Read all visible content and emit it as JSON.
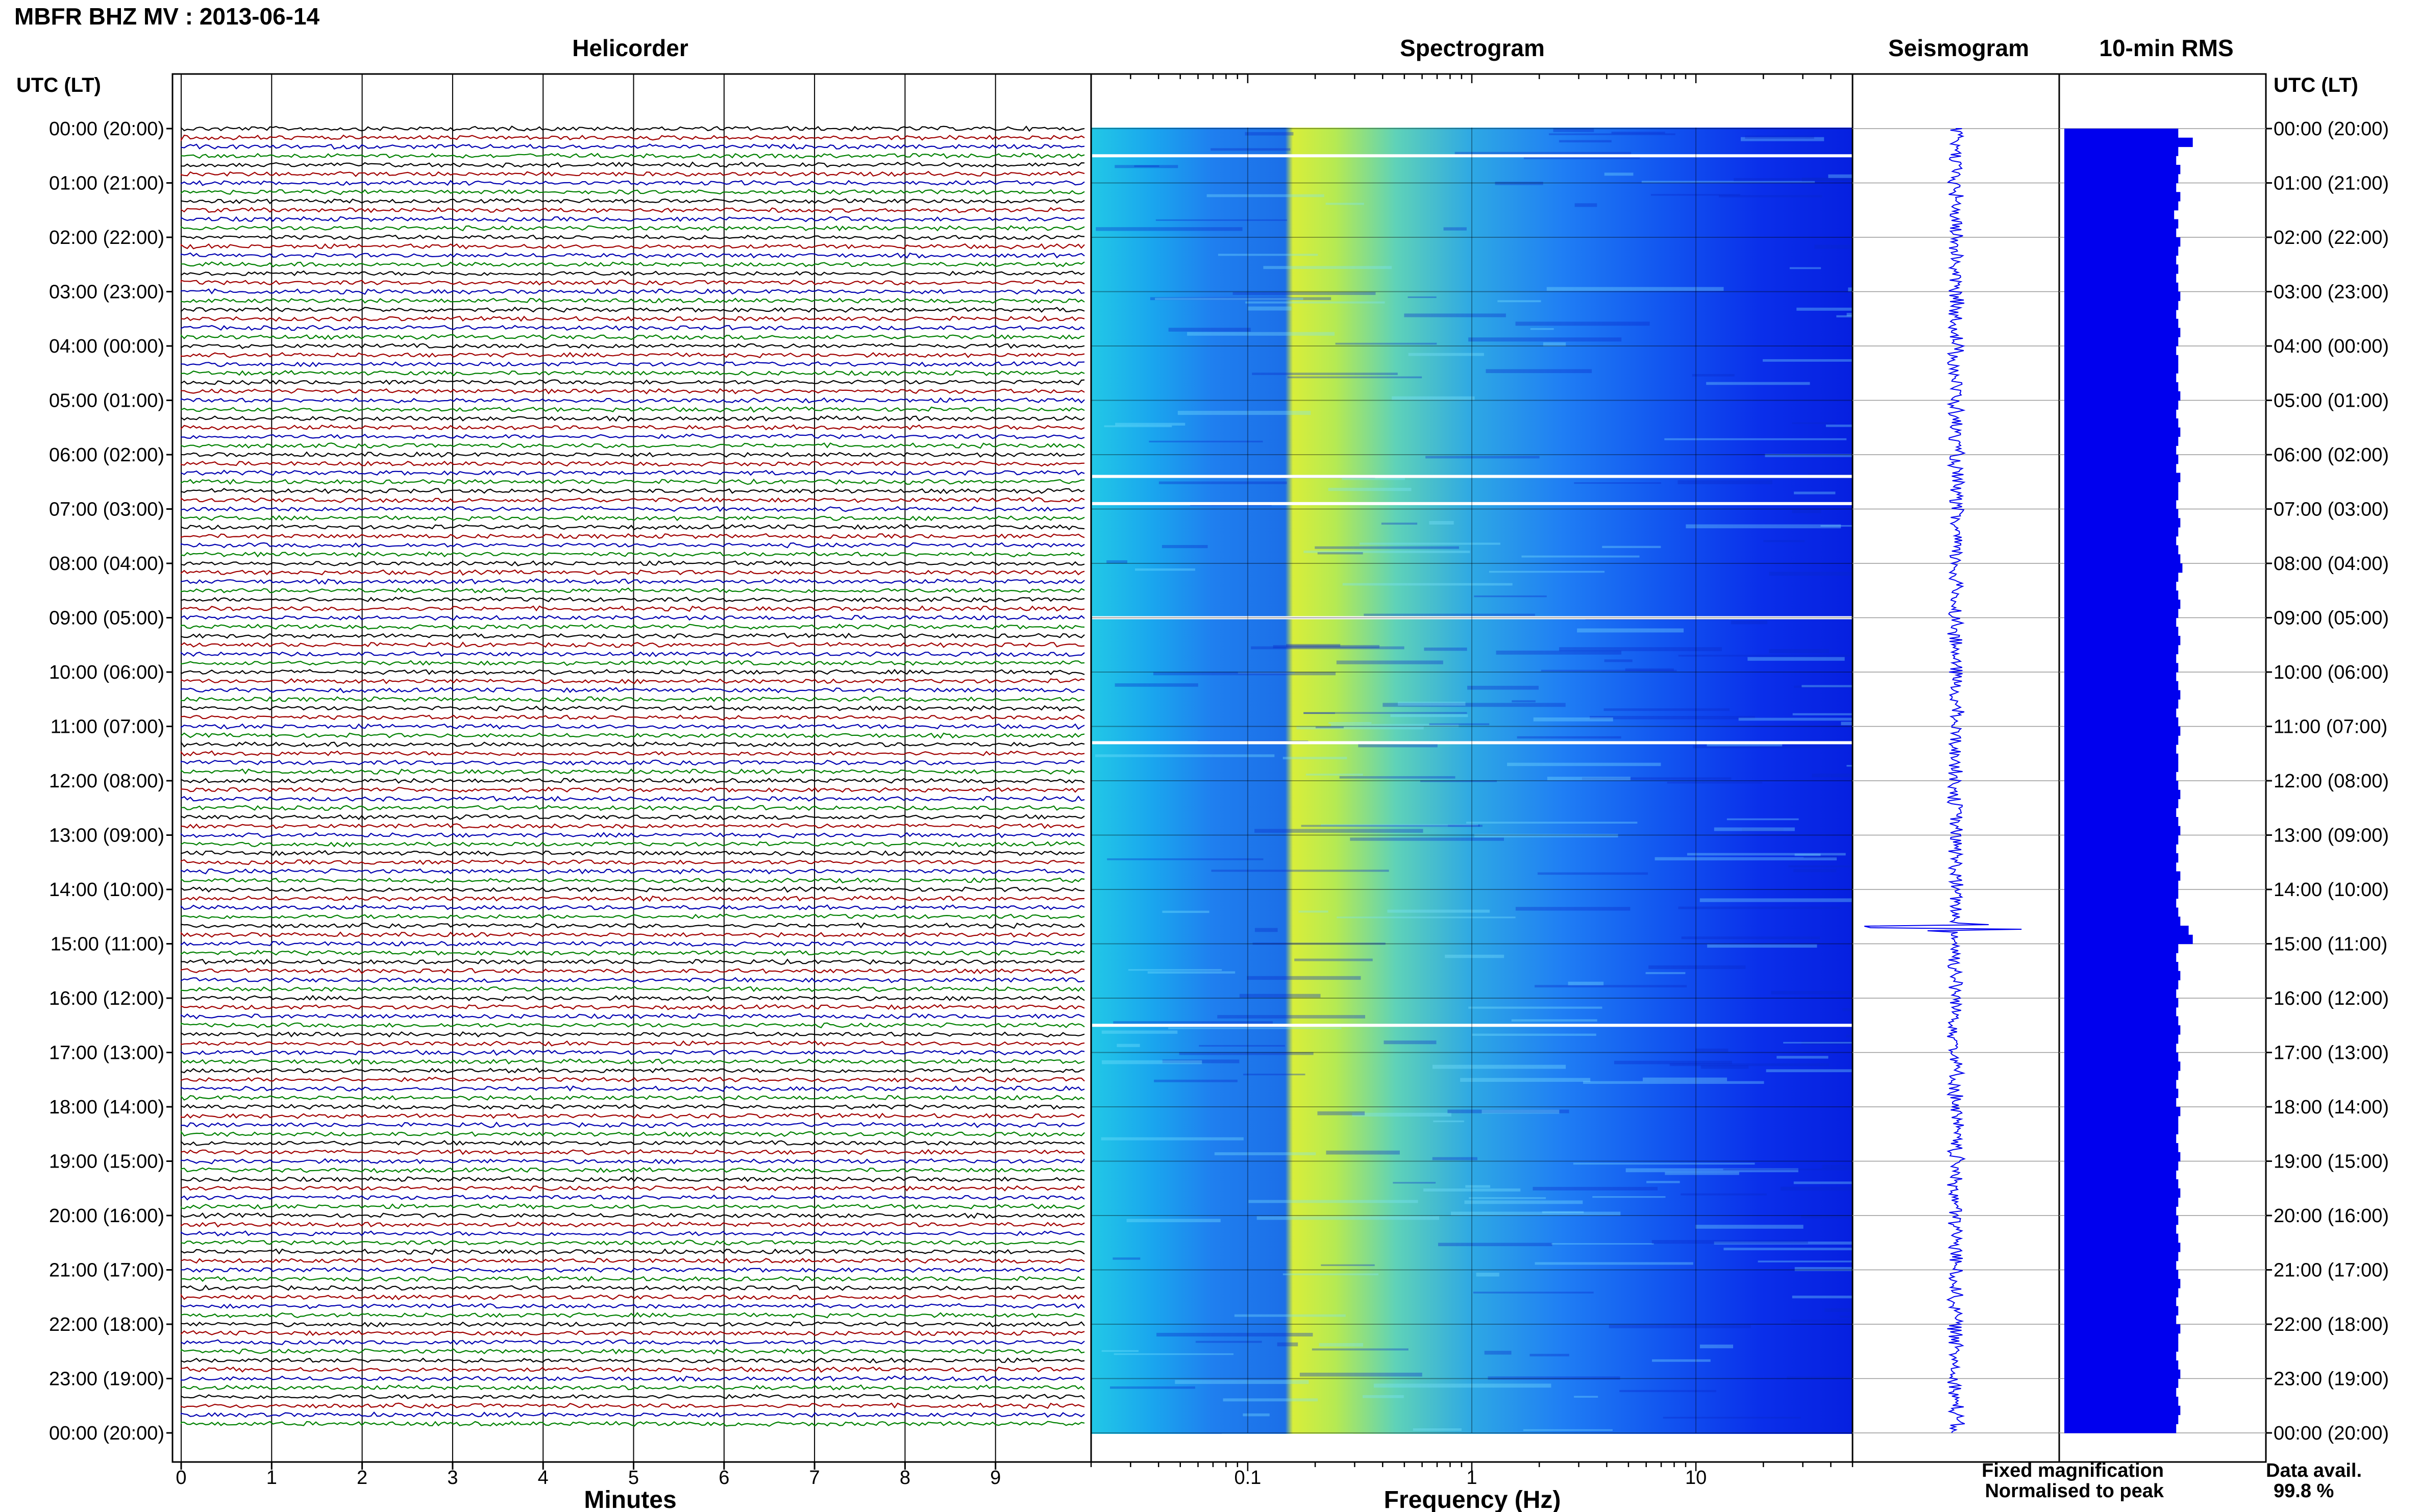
{
  "header": {
    "station_title": "MBFR BHZ MV : 2013-06-14"
  },
  "panels": {
    "helicorder": "Helicorder",
    "spectrogram": "Spectrogram",
    "seismogram": "Seismogram",
    "rms": "10-min RMS"
  },
  "axis_labels": {
    "utc_left": "UTC (LT)",
    "utc_right": "UTC (LT)",
    "minutes": "Minutes",
    "frequency": "Frequency (Hz)"
  },
  "legend": {
    "fixed": "Fixed magnification",
    "normalised": "Normalised to peak",
    "fixed_color": "#0000ee",
    "normalised_color": "#ee0000"
  },
  "availability": {
    "label": "Data avail.",
    "value": "99.8 %"
  },
  "colors": {
    "trace_cycle": [
      "#000000",
      "#a00000",
      "#0000b0",
      "#008000"
    ],
    "rms_bar": "#0000ee",
    "seismogram": "#0000ee"
  },
  "chart_data": {
    "type": "heatmap",
    "title": "MBFR BHZ MV : 2013-06-14",
    "time_labels": [
      "00:00 (20:00)",
      "01:00 (21:00)",
      "02:00 (22:00)",
      "03:00 (23:00)",
      "04:00 (00:00)",
      "05:00 (01:00)",
      "06:00 (02:00)",
      "07:00 (03:00)",
      "08:00 (04:00)",
      "09:00 (05:00)",
      "10:00 (06:00)",
      "11:00 (07:00)",
      "12:00 (08:00)",
      "13:00 (09:00)",
      "14:00 (10:00)",
      "15:00 (11:00)",
      "16:00 (12:00)",
      "17:00 (13:00)",
      "18:00 (14:00)",
      "19:00 (15:00)",
      "20:00 (16:00)",
      "21:00 (17:00)",
      "22:00 (18:00)",
      "23:00 (19:00)",
      "00:00 (20:00)"
    ],
    "minutes_ticks": [
      "0",
      "1",
      "2",
      "3",
      "4",
      "5",
      "6",
      "7",
      "8",
      "9"
    ],
    "minutes_range": [
      0,
      10
    ],
    "frequency_ticks": [
      "0.1",
      "1",
      "10"
    ],
    "frequency_range": [
      0.02,
      50
    ],
    "frequency_scale": "log",
    "traces_per_hour": 6,
    "rms_values": [
      0.55,
      0.62,
      0.55,
      0.54,
      0.56,
      0.55,
      0.54,
      0.56,
      0.55,
      0.53,
      0.55,
      0.54,
      0.56,
      0.55,
      0.54,
      0.55,
      0.54,
      0.55,
      0.56,
      0.55,
      0.54,
      0.55,
      0.56,
      0.55,
      0.54,
      0.55,
      0.55,
      0.54,
      0.55,
      0.56,
      0.55,
      0.54,
      0.55,
      0.56,
      0.55,
      0.54,
      0.55,
      0.54,
      0.56,
      0.55,
      0.55,
      0.54,
      0.55,
      0.56,
      0.55,
      0.54,
      0.55,
      0.56,
      0.57,
      0.55,
      0.54,
      0.55,
      0.56,
      0.55,
      0.54,
      0.55,
      0.56,
      0.55,
      0.54,
      0.55,
      0.54,
      0.55,
      0.56,
      0.55,
      0.54,
      0.55,
      0.56,
      0.55,
      0.54,
      0.55,
      0.55,
      0.54,
      0.55,
      0.56,
      0.55,
      0.54,
      0.55,
      0.56,
      0.55,
      0.54,
      0.55,
      0.54,
      0.56,
      0.55,
      0.55,
      0.54,
      0.55,
      0.56,
      0.6,
      0.62,
      0.55,
      0.54,
      0.55,
      0.56,
      0.55,
      0.54,
      0.55,
      0.54,
      0.55,
      0.56,
      0.55,
      0.54,
      0.55,
      0.56,
      0.55,
      0.54,
      0.55,
      0.54,
      0.56,
      0.55,
      0.55,
      0.54,
      0.55,
      0.56,
      0.55,
      0.54,
      0.55,
      0.56,
      0.55,
      0.54,
      0.55,
      0.54,
      0.55,
      0.56,
      0.55,
      0.54,
      0.55,
      0.56,
      0.55,
      0.54,
      0.55,
      0.54,
      0.56,
      0.55,
      0.55,
      0.54,
      0.55,
      0.56,
      0.55,
      0.54,
      0.55,
      0.56,
      0.55,
      0.54
    ]
  }
}
